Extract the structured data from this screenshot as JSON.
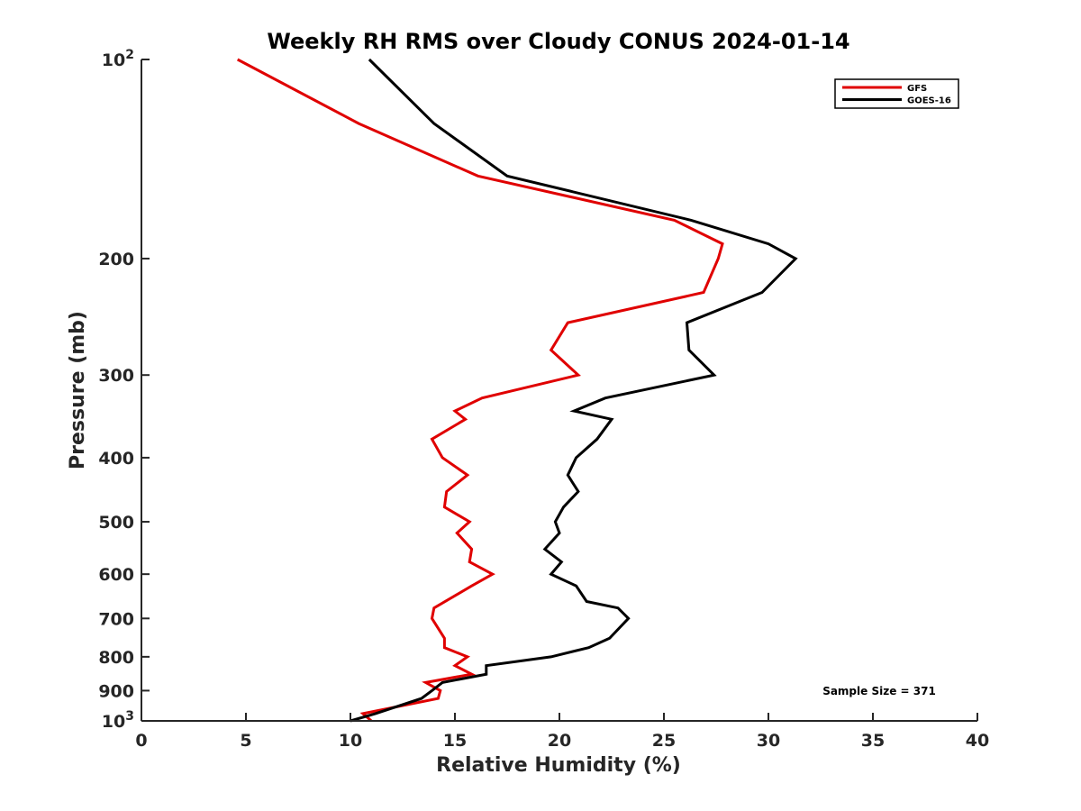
{
  "chart_data": {
    "type": "line",
    "title": "Weekly RH RMS over Cloudy CONUS 2024-01-14",
    "xlabel": "Relative Humidity (%)",
    "ylabel": "Pressure (mb)",
    "xlim": [
      0,
      40
    ],
    "ylim": [
      100,
      1000
    ],
    "y_scale": "log",
    "y_reversed": true,
    "grid": false,
    "legend_position": "top-right",
    "x_ticks": [
      {
        "value": 0,
        "label": "0"
      },
      {
        "value": 5,
        "label": "5"
      },
      {
        "value": 10,
        "label": "10"
      },
      {
        "value": 15,
        "label": "15"
      },
      {
        "value": 20,
        "label": "20"
      },
      {
        "value": 25,
        "label": "25"
      },
      {
        "value": 30,
        "label": "30"
      },
      {
        "value": 35,
        "label": "35"
      },
      {
        "value": 40,
        "label": "40"
      }
    ],
    "y_ticks": [
      {
        "value": 100,
        "label": "10",
        "exp": "2"
      },
      {
        "value": 200,
        "label": "200"
      },
      {
        "value": 300,
        "label": "300"
      },
      {
        "value": 400,
        "label": "400"
      },
      {
        "value": 500,
        "label": "500"
      },
      {
        "value": 600,
        "label": "600"
      },
      {
        "value": 700,
        "label": "700"
      },
      {
        "value": 800,
        "label": "800"
      },
      {
        "value": 900,
        "label": "900"
      },
      {
        "value": 1000,
        "label": "10",
        "exp": "3"
      }
    ],
    "series": [
      {
        "name": "GFS",
        "color": "#e00000",
        "points": [
          [
            4.6,
            100
          ],
          [
            10.4,
            125
          ],
          [
            16.1,
            150
          ],
          [
            25.5,
            175
          ],
          [
            27.8,
            190
          ],
          [
            27.6,
            200
          ],
          [
            26.9,
            225
          ],
          [
            20.4,
            250
          ],
          [
            19.6,
            275
          ],
          [
            20.9,
            300
          ],
          [
            16.3,
            325
          ],
          [
            15.0,
            340
          ],
          [
            15.5,
            350
          ],
          [
            13.9,
            375
          ],
          [
            14.4,
            400
          ],
          [
            15.6,
            425
          ],
          [
            14.6,
            450
          ],
          [
            14.5,
            475
          ],
          [
            15.7,
            500
          ],
          [
            15.1,
            520
          ],
          [
            15.8,
            550
          ],
          [
            15.7,
            575
          ],
          [
            16.8,
            600
          ],
          [
            15.8,
            625
          ],
          [
            14.0,
            675
          ],
          [
            13.9,
            700
          ],
          [
            14.5,
            750
          ],
          [
            14.5,
            775
          ],
          [
            15.6,
            800
          ],
          [
            15.0,
            825
          ],
          [
            15.8,
            850
          ],
          [
            13.6,
            875
          ],
          [
            14.3,
            900
          ],
          [
            14.2,
            925
          ],
          [
            10.6,
            975
          ],
          [
            11.0,
            1000
          ]
        ]
      },
      {
        "name": "GOES-16",
        "color": "#000000",
        "points": [
          [
            10.9,
            100
          ],
          [
            14.0,
            125
          ],
          [
            17.5,
            150
          ],
          [
            26.3,
            175
          ],
          [
            30.0,
            190
          ],
          [
            31.3,
            200
          ],
          [
            29.7,
            225
          ],
          [
            26.1,
            250
          ],
          [
            26.2,
            275
          ],
          [
            27.4,
            300
          ],
          [
            22.2,
            325
          ],
          [
            20.7,
            340
          ],
          [
            22.5,
            350
          ],
          [
            21.8,
            375
          ],
          [
            20.8,
            400
          ],
          [
            20.4,
            425
          ],
          [
            20.9,
            450
          ],
          [
            20.2,
            475
          ],
          [
            19.8,
            500
          ],
          [
            20.0,
            520
          ],
          [
            19.3,
            550
          ],
          [
            20.1,
            575
          ],
          [
            19.6,
            600
          ],
          [
            20.8,
            625
          ],
          [
            21.3,
            660
          ],
          [
            22.8,
            675
          ],
          [
            23.3,
            700
          ],
          [
            22.4,
            750
          ],
          [
            21.4,
            775
          ],
          [
            19.6,
            800
          ],
          [
            16.5,
            825
          ],
          [
            16.5,
            850
          ],
          [
            14.4,
            875
          ],
          [
            13.9,
            900
          ],
          [
            13.4,
            925
          ],
          [
            11.2,
            975
          ],
          [
            10.0,
            1000
          ]
        ]
      }
    ],
    "annotations": [
      "Sample Size = 371"
    ]
  }
}
